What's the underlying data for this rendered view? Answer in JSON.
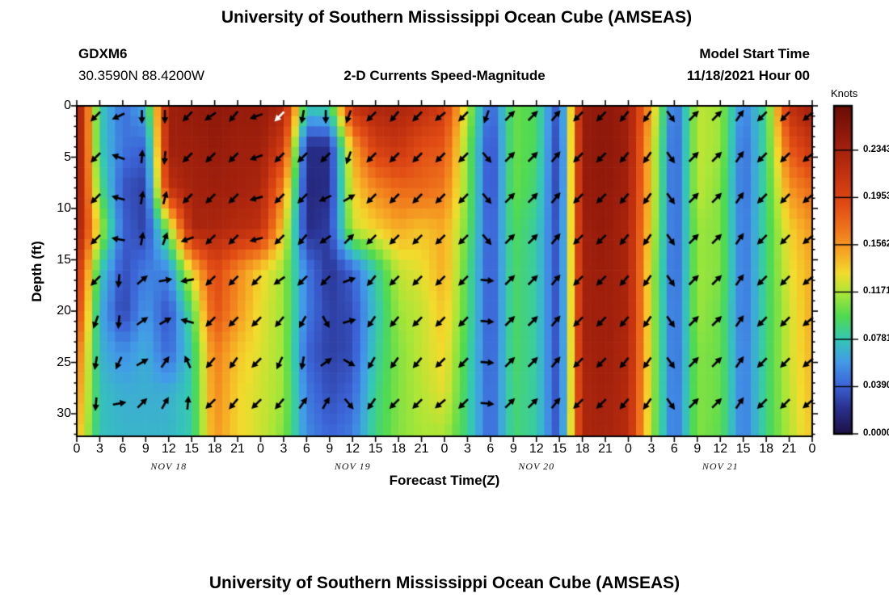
{
  "page": {
    "main_title": "University of Southern Mississippi Ocean Cube (AMSEAS)",
    "bottom_title": "University of Southern Mississippi Ocean Cube (AMSEAS)"
  },
  "header": {
    "station_id": "GDXM6",
    "coordinates": "30.3590N  88.4200W",
    "subtitle": "2-D Currents Speed-Magnitude",
    "model_start_label": "Model Start Time",
    "model_start_value": "11/18/2021 Hour 00"
  },
  "chart_data": {
    "type": "heatmap",
    "title": "2-D Currents Speed-Magnitude",
    "xlabel": "Forecast Time(Z)",
    "ylabel": "Depth (ft)",
    "colorbar_label": "Knots",
    "colorbar_tick_labels": [
      "0.23437",
      "0.19531",
      "0.15625",
      "0.11718",
      "0.07812",
      "0.03906",
      "0.00000"
    ],
    "colorbar_tick_step_knots": 0.0390625,
    "vmax_knots": 0.271,
    "x_hours": [
      0,
      3,
      6,
      9,
      12,
      15,
      18,
      21,
      24,
      27,
      30,
      33,
      36,
      39,
      42,
      45,
      48,
      51,
      54,
      57,
      60,
      63,
      66,
      69,
      72,
      75,
      78,
      81,
      84,
      87,
      90,
      93,
      96
    ],
    "x_tick_labels": [
      "0",
      "3",
      "6",
      "9",
      "12",
      "15",
      "18",
      "21",
      "0",
      "3",
      "6",
      "9",
      "12",
      "15",
      "18",
      "21",
      "0",
      "3",
      "6",
      "9",
      "12",
      "15",
      "18",
      "21",
      "0",
      "3",
      "6",
      "9",
      "12",
      "15",
      "18",
      "21",
      "0"
    ],
    "date_labels": [
      {
        "text": "NOV 18",
        "hour": 12
      },
      {
        "text": "NOV 19",
        "hour": 36
      },
      {
        "text": "NOV 20",
        "hour": 60
      },
      {
        "text": "NOV 21",
        "hour": 84
      }
    ],
    "y_ticks": [
      0,
      5,
      10,
      15,
      20,
      25,
      30
    ],
    "depth_max_ft": 32.2,
    "grid_depths_ft": [
      0,
      4,
      8,
      12,
      16,
      20,
      24,
      28,
      32
    ],
    "speed_normalized_by_row": [
      [
        0.93,
        0.3,
        0.16,
        0.25,
        0.88,
        0.9,
        0.92,
        0.9,
        0.9,
        0.85,
        0.3,
        0.32,
        0.8,
        0.85,
        0.85,
        0.82,
        0.75,
        0.45,
        0.13,
        0.38,
        0.35,
        0.1,
        0.9,
        0.92,
        0.88,
        0.55,
        0.13,
        0.45,
        0.42,
        0.18,
        0.33,
        0.8,
        0.88
      ],
      [
        0.93,
        0.3,
        0.17,
        0.15,
        0.88,
        0.88,
        0.9,
        0.88,
        0.88,
        0.75,
        0.07,
        0.07,
        0.55,
        0.75,
        0.78,
        0.7,
        0.68,
        0.4,
        0.1,
        0.38,
        0.35,
        0.08,
        0.9,
        0.92,
        0.88,
        0.5,
        0.12,
        0.45,
        0.42,
        0.15,
        0.33,
        0.68,
        0.78
      ],
      [
        0.92,
        0.35,
        0.13,
        0.1,
        0.8,
        0.87,
        0.88,
        0.87,
        0.85,
        0.6,
        0.06,
        0.07,
        0.5,
        0.6,
        0.65,
        0.65,
        0.62,
        0.4,
        0.1,
        0.38,
        0.33,
        0.08,
        0.9,
        0.91,
        0.87,
        0.5,
        0.12,
        0.45,
        0.4,
        0.15,
        0.33,
        0.58,
        0.65
      ],
      [
        0.9,
        0.45,
        0.15,
        0.1,
        0.4,
        0.85,
        0.85,
        0.82,
        0.8,
        0.5,
        0.07,
        0.1,
        0.45,
        0.5,
        0.55,
        0.52,
        0.55,
        0.38,
        0.12,
        0.36,
        0.3,
        0.1,
        0.88,
        0.9,
        0.85,
        0.48,
        0.13,
        0.42,
        0.4,
        0.16,
        0.33,
        0.5,
        0.58
      ],
      [
        0.8,
        0.3,
        0.12,
        0.18,
        0.2,
        0.5,
        0.72,
        0.6,
        0.5,
        0.42,
        0.18,
        0.08,
        0.15,
        0.3,
        0.45,
        0.48,
        0.55,
        0.35,
        0.12,
        0.35,
        0.3,
        0.1,
        0.87,
        0.89,
        0.85,
        0.45,
        0.13,
        0.42,
        0.4,
        0.16,
        0.33,
        0.48,
        0.55
      ],
      [
        0.75,
        0.25,
        0.1,
        0.22,
        0.12,
        0.35,
        0.7,
        0.58,
        0.48,
        0.42,
        0.18,
        0.1,
        0.12,
        0.28,
        0.42,
        0.45,
        0.52,
        0.35,
        0.12,
        0.35,
        0.3,
        0.1,
        0.87,
        0.88,
        0.85,
        0.45,
        0.14,
        0.42,
        0.38,
        0.16,
        0.33,
        0.46,
        0.55
      ],
      [
        0.65,
        0.26,
        0.2,
        0.25,
        0.15,
        0.3,
        0.62,
        0.52,
        0.47,
        0.42,
        0.15,
        0.1,
        0.12,
        0.3,
        0.4,
        0.45,
        0.5,
        0.33,
        0.13,
        0.35,
        0.3,
        0.1,
        0.86,
        0.88,
        0.84,
        0.45,
        0.14,
        0.4,
        0.38,
        0.17,
        0.33,
        0.46,
        0.54
      ],
      [
        0.6,
        0.28,
        0.25,
        0.25,
        0.25,
        0.3,
        0.6,
        0.5,
        0.46,
        0.42,
        0.18,
        0.12,
        0.15,
        0.32,
        0.4,
        0.44,
        0.48,
        0.32,
        0.14,
        0.34,
        0.3,
        0.1,
        0.85,
        0.87,
        0.83,
        0.44,
        0.15,
        0.4,
        0.38,
        0.17,
        0.33,
        0.45,
        0.53
      ],
      [
        0.55,
        0.28,
        0.26,
        0.26,
        0.26,
        0.3,
        0.58,
        0.5,
        0.46,
        0.4,
        0.2,
        0.15,
        0.18,
        0.33,
        0.4,
        0.43,
        0.43,
        0.32,
        0.14,
        0.34,
        0.3,
        0.11,
        0.85,
        0.86,
        0.82,
        0.43,
        0.15,
        0.4,
        0.37,
        0.17,
        0.33,
        0.44,
        0.52
      ]
    ],
    "arrows": {
      "hours_start": 2.5,
      "hours_step": 3,
      "depths_ft": [
        1,
        5,
        9,
        13,
        17,
        21,
        25,
        29
      ],
      "angles_deg_ccw_from_east": [
        [
          225,
          205,
          270,
          270,
          225,
          215,
          230,
          200,
          225,
          260,
          270,
          250,
          225,
          230,
          225,
          220,
          225,
          250,
          45,
          45,
          50,
          225,
          225,
          230,
          235,
          305,
          45,
          45,
          55,
          225,
          225,
          220
        ],
        [
          225,
          160,
          85,
          265,
          225,
          225,
          225,
          200,
          225,
          225,
          225,
          250,
          225,
          225,
          225,
          225,
          225,
          310,
          45,
          45,
          50,
          225,
          225,
          230,
          235,
          305,
          45,
          45,
          55,
          225,
          225,
          220
        ],
        [
          225,
          165,
          80,
          75,
          225,
          225,
          225,
          195,
          225,
          225,
          205,
          30,
          225,
          225,
          225,
          225,
          225,
          310,
          45,
          45,
          50,
          225,
          225,
          230,
          235,
          305,
          45,
          45,
          55,
          225,
          225,
          220
        ],
        [
          225,
          170,
          80,
          70,
          200,
          225,
          225,
          195,
          225,
          230,
          215,
          45,
          225,
          225,
          225,
          225,
          225,
          310,
          45,
          45,
          50,
          225,
          225,
          230,
          235,
          305,
          45,
          45,
          55,
          225,
          225,
          220
        ],
        [
          225,
          265,
          40,
          10,
          190,
          225,
          225,
          225,
          215,
          225,
          225,
          20,
          230,
          225,
          225,
          225,
          225,
          355,
          45,
          45,
          50,
          225,
          225,
          230,
          235,
          305,
          45,
          45,
          55,
          225,
          225,
          220
        ],
        [
          250,
          265,
          35,
          30,
          165,
          225,
          225,
          225,
          230,
          240,
          300,
          15,
          235,
          230,
          225,
          225,
          225,
          355,
          45,
          45,
          50,
          225,
          225,
          230,
          235,
          305,
          45,
          45,
          55,
          225,
          225,
          220
        ],
        [
          260,
          245,
          30,
          55,
          115,
          230,
          235,
          225,
          245,
          260,
          35,
          330,
          240,
          235,
          230,
          225,
          225,
          355,
          45,
          45,
          50,
          225,
          225,
          230,
          235,
          305,
          45,
          45,
          55,
          225,
          225,
          220
        ],
        [
          265,
          10,
          45,
          60,
          85,
          225,
          230,
          225,
          230,
          55,
          60,
          310,
          235,
          225,
          225,
          220,
          225,
          355,
          45,
          45,
          50,
          225,
          225,
          230,
          235,
          305,
          45,
          45,
          55,
          225,
          225,
          220
        ]
      ],
      "white_arrow": {
        "row": 0,
        "col": 8
      },
      "arrow_color": "#000000",
      "white_arrow_color": "#ffffff"
    },
    "colormap_stops": [
      [
        0.0,
        [
          28,
          16,
          68
        ]
      ],
      [
        0.08,
        [
          41,
          48,
          142
        ]
      ],
      [
        0.15,
        [
          60,
          100,
          215
        ]
      ],
      [
        0.22,
        [
          66,
          155,
          232
        ]
      ],
      [
        0.29,
        [
          52,
          200,
          180
        ]
      ],
      [
        0.36,
        [
          80,
          218,
          80
        ]
      ],
      [
        0.43,
        [
          170,
          230,
          55
        ]
      ],
      [
        0.49,
        [
          242,
          220,
          45
        ]
      ],
      [
        0.55,
        [
          246,
          170,
          36
        ]
      ],
      [
        0.62,
        [
          240,
          120,
          28
        ]
      ],
      [
        0.7,
        [
          225,
          75,
          20
        ]
      ],
      [
        0.8,
        [
          192,
          48,
          15
        ]
      ],
      [
        0.9,
        [
          150,
          27,
          11
        ]
      ],
      [
        1.0,
        [
          106,
          13,
          7
        ]
      ]
    ],
    "legend_position": "right",
    "grid": false
  }
}
